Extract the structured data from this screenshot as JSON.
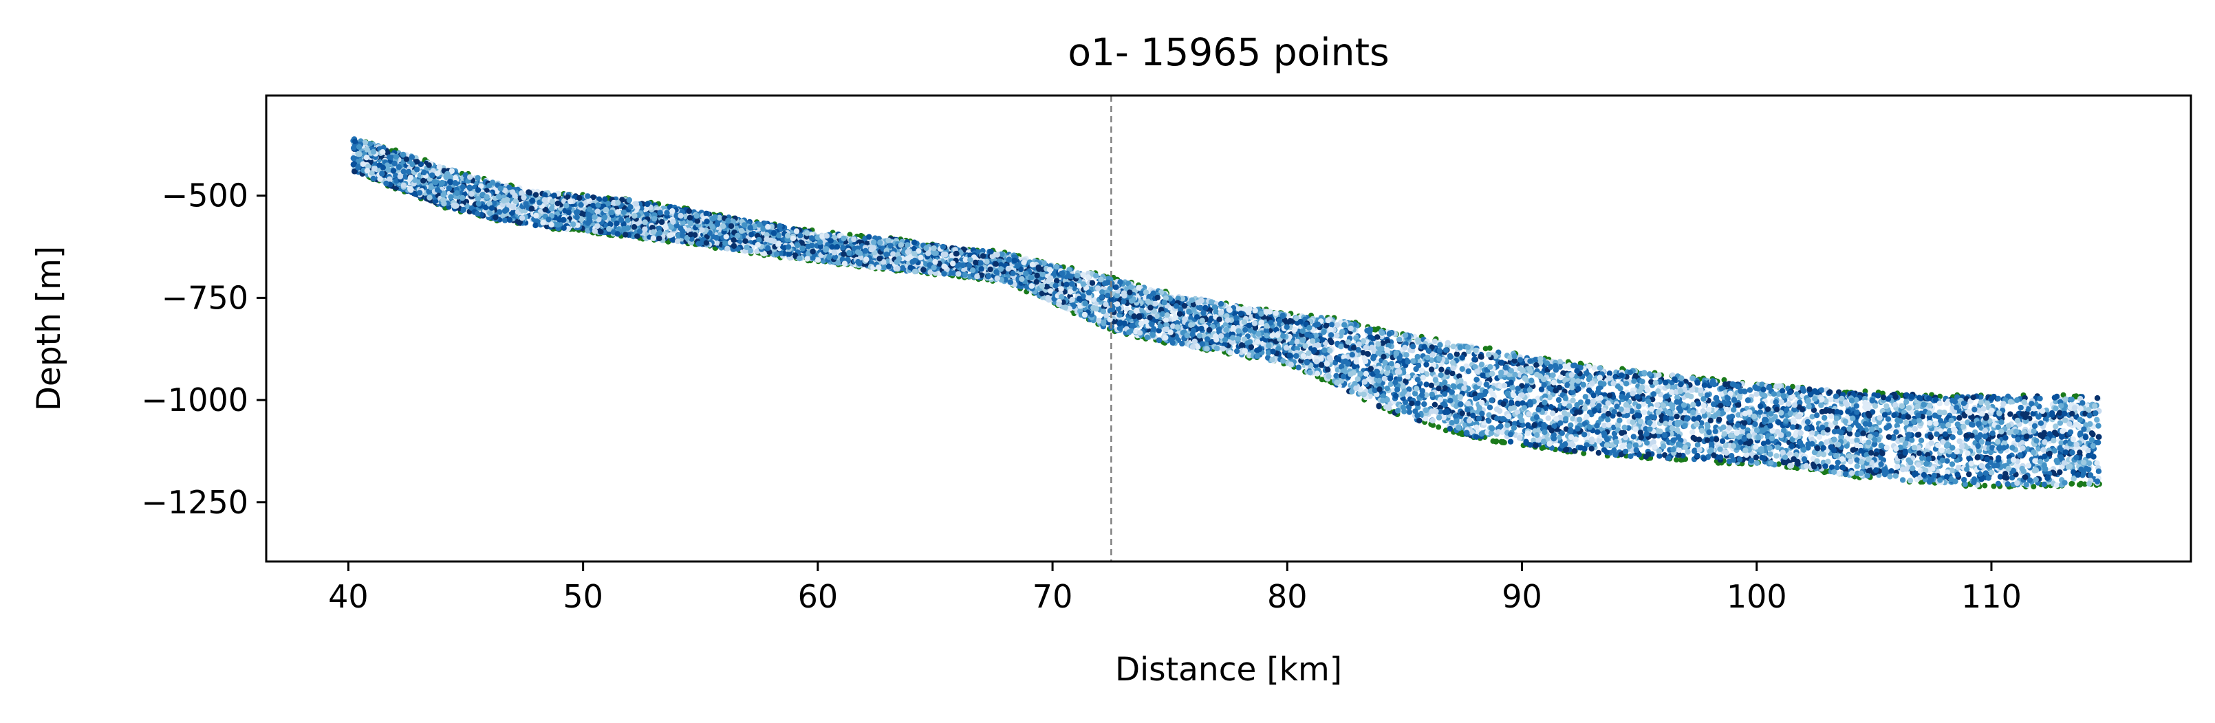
{
  "chart_data": {
    "type": "scatter",
    "title": "o1- 15965 points",
    "xlabel": "Distance [km]",
    "ylabel": "Depth [m]",
    "xlim": [
      36.5,
      118.5
    ],
    "ylim": [
      -1395,
      -255
    ],
    "xticks": [
      40,
      50,
      60,
      70,
      80,
      90,
      100,
      110
    ],
    "yticks": [
      -500,
      -750,
      -1000,
      -1250
    ],
    "xtick_labels": [
      "40",
      "50",
      "60",
      "70",
      "80",
      "90",
      "100",
      "110"
    ],
    "ytick_labels": [
      "−500",
      "−750",
      "−1000",
      "−1250"
    ],
    "grid": false,
    "legend": "none",
    "point_count": 15965,
    "vertical_reference_line": {
      "x": 72.5,
      "style": "dashed",
      "color": "#808080"
    },
    "point_colors": [
      "#08306b",
      "#08519c",
      "#2171b5",
      "#4292c6",
      "#6baed6",
      "#9ecae1",
      "#c6dbef",
      "#deebf7"
    ],
    "boundary_point_color": "#1a7a1a",
    "band_profile": {
      "x": [
        40.2,
        42,
        44,
        46,
        48,
        50,
        52,
        55,
        58,
        60,
        63,
        66,
        68,
        70,
        72.5,
        75,
        78,
        80,
        82,
        84,
        86,
        88,
        90,
        92,
        95,
        98,
        100,
        102,
        104,
        106,
        108,
        110,
        112,
        114.6
      ],
      "top": [
        -360,
        -390,
        -430,
        -465,
        -490,
        -500,
        -510,
        -540,
        -570,
        -590,
        -605,
        -630,
        -640,
        -670,
        -700,
        -740,
        -770,
        -790,
        -800,
        -830,
        -850,
        -870,
        -890,
        -910,
        -930,
        -950,
        -960,
        -970,
        -980,
        -985,
        -990,
        -990,
        -990,
        -990
      ],
      "bottom": [
        -440,
        -480,
        -525,
        -555,
        -575,
        -585,
        -600,
        -620,
        -645,
        -660,
        -680,
        -695,
        -710,
        -760,
        -830,
        -860,
        -890,
        -910,
        -960,
        -1020,
        -1060,
        -1090,
        -1110,
        -1125,
        -1140,
        -1150,
        -1155,
        -1165,
        -1185,
        -1195,
        -1205,
        -1210,
        -1210,
        -1205
      ]
    }
  }
}
